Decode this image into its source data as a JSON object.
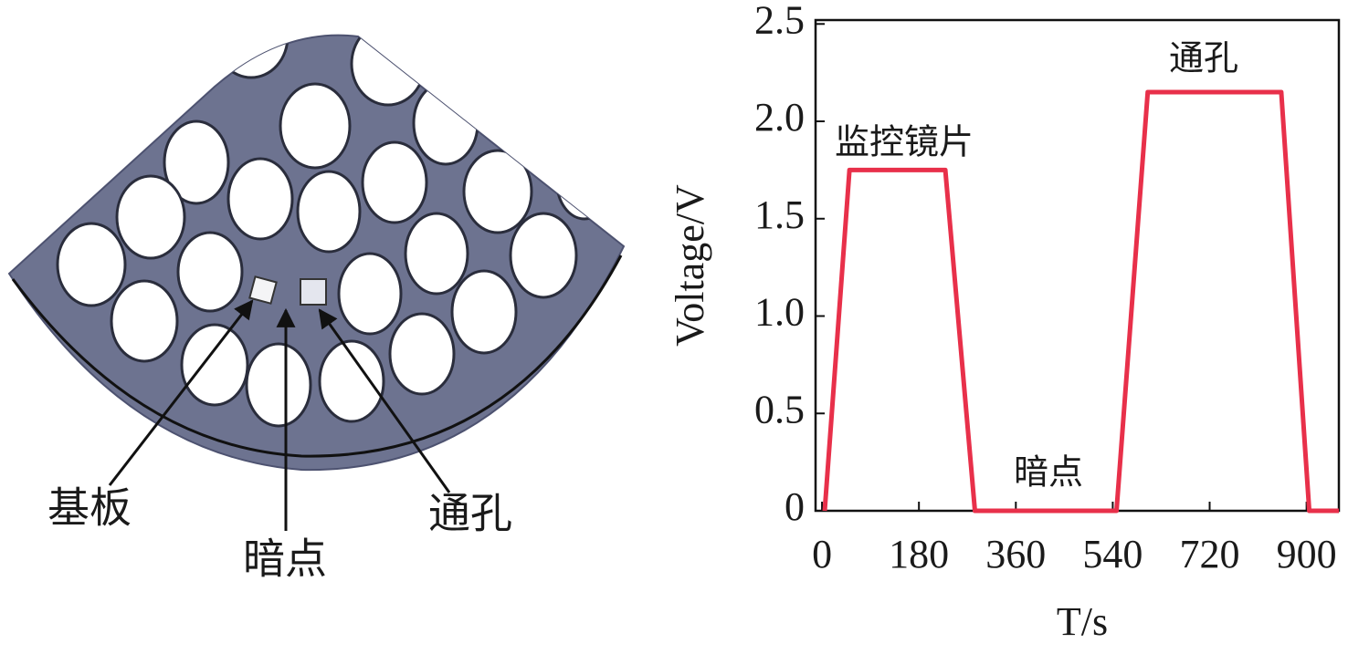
{
  "diagram": {
    "labels": [
      "基板",
      "暗点",
      "通孔"
    ]
  },
  "chart_data": {
    "type": "line",
    "x_label": "T/s",
    "y_label": "Voltage/V",
    "x": [
      5,
      51,
      229,
      284,
      547,
      605,
      853,
      905,
      960
    ],
    "series": [
      {
        "color": "#e8304a",
        "values": [
          0,
          1.75,
          1.75,
          0,
          0,
          2.15,
          2.15,
          0,
          0
        ]
      }
    ],
    "xlim": [
      -12,
      960
    ],
    "ylim": [
      0,
      2.52
    ],
    "xticks": [
      0,
      180,
      360,
      540,
      720,
      900
    ],
    "yticks": [
      0,
      0.5,
      {
        "value": 1,
        "label": "1.0"
      },
      1.5,
      {
        "value": 2,
        "label": "2.0"
      },
      2.5
    ],
    "annotations": [
      "监控镜片",
      "暗点",
      "通孔"
    ]
  }
}
